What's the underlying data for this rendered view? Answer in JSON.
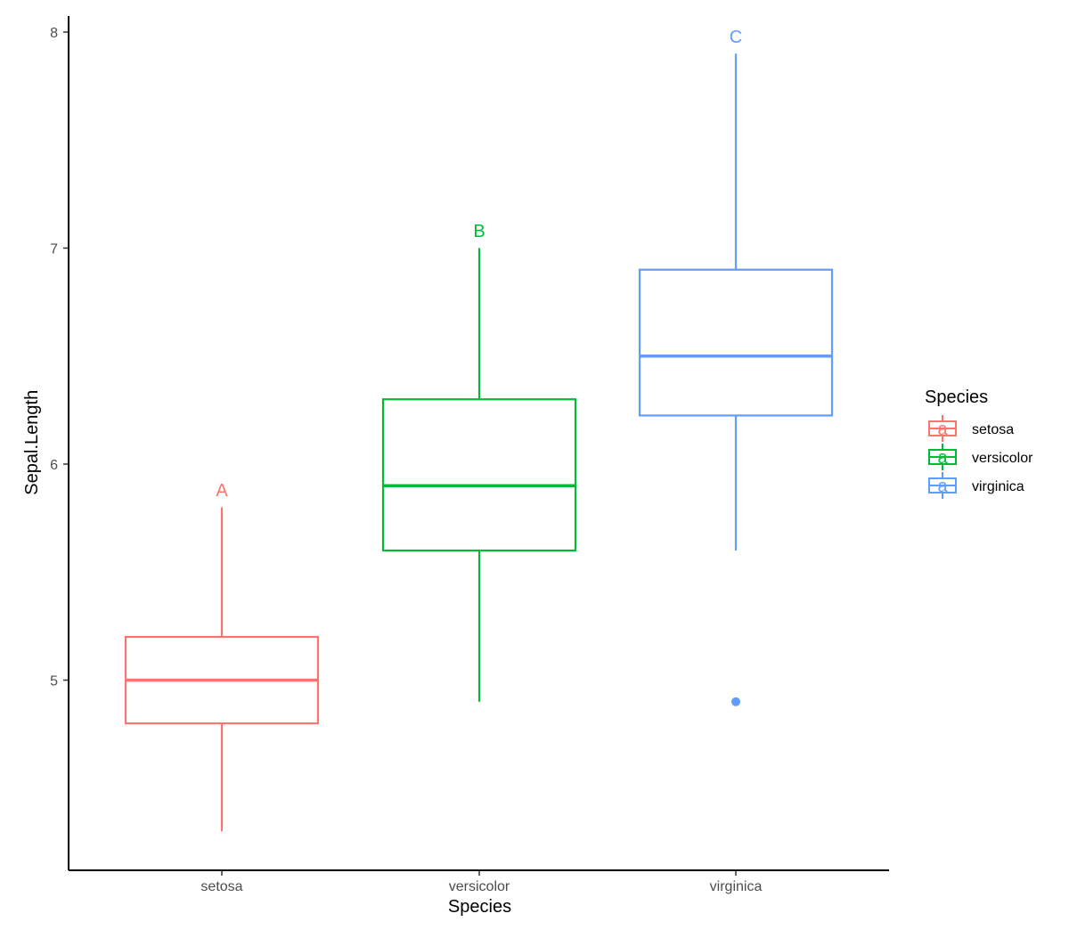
{
  "chart_data": {
    "type": "boxplot",
    "xlabel": "Species",
    "ylabel": "Sepal.Length",
    "ylim": [
      4.2,
      8.1
    ],
    "y_ticks": [
      5,
      6,
      7,
      8
    ],
    "grid": false,
    "legend": {
      "title": "Species",
      "placement": "right",
      "key_glyph": "a"
    },
    "categories": [
      "setosa",
      "versicolor",
      "virginica"
    ],
    "series": [
      {
        "name": "setosa",
        "color": "#F8766D",
        "whisker_low": 4.3,
        "q1": 4.8,
        "median": 5.0,
        "q3": 5.2,
        "whisker_high": 5.8,
        "outliers": [],
        "group_letter": "A",
        "letter_y": 5.88
      },
      {
        "name": "versicolor",
        "color": "#00BA38",
        "whisker_low": 4.9,
        "q1": 5.6,
        "median": 5.9,
        "q3": 6.3,
        "whisker_high": 7.0,
        "outliers": [],
        "group_letter": "B",
        "letter_y": 7.08
      },
      {
        "name": "virginica",
        "color": "#619CFF",
        "whisker_low": 5.6,
        "q1": 6.225,
        "median": 6.5,
        "q3": 6.9,
        "whisker_high": 7.9,
        "outliers": [
          4.9
        ],
        "group_letter": "C",
        "letter_y": 7.98
      }
    ]
  }
}
